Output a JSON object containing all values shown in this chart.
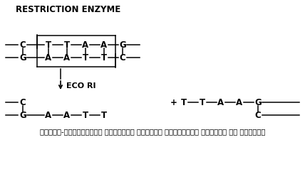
{
  "title": "RESTRICTION ENZYME",
  "bg_color": "#ffffff",
  "text_color": "#000000",
  "figsize": [
    4.28,
    2.59
  ],
  "dpi": 100,
  "caption": "चित्र-नियन्त्रण एन्जाइम द्वारा डी।एन।ए। क्षारक का काटना।",
  "eco_ri_label": "ECO RI",
  "top_str1": [
    "C",
    "T",
    "T",
    "A",
    "A",
    "G"
  ],
  "bot_str1": [
    "G",
    "A",
    "A",
    "T",
    "T",
    "C"
  ],
  "top_str2_left": "C",
  "bot_str2_left": [
    "G",
    "A",
    "A",
    "T",
    "T"
  ],
  "top_str2_right": [
    "T",
    "T",
    "A",
    "A",
    "G"
  ],
  "bot_str2_right": "C"
}
